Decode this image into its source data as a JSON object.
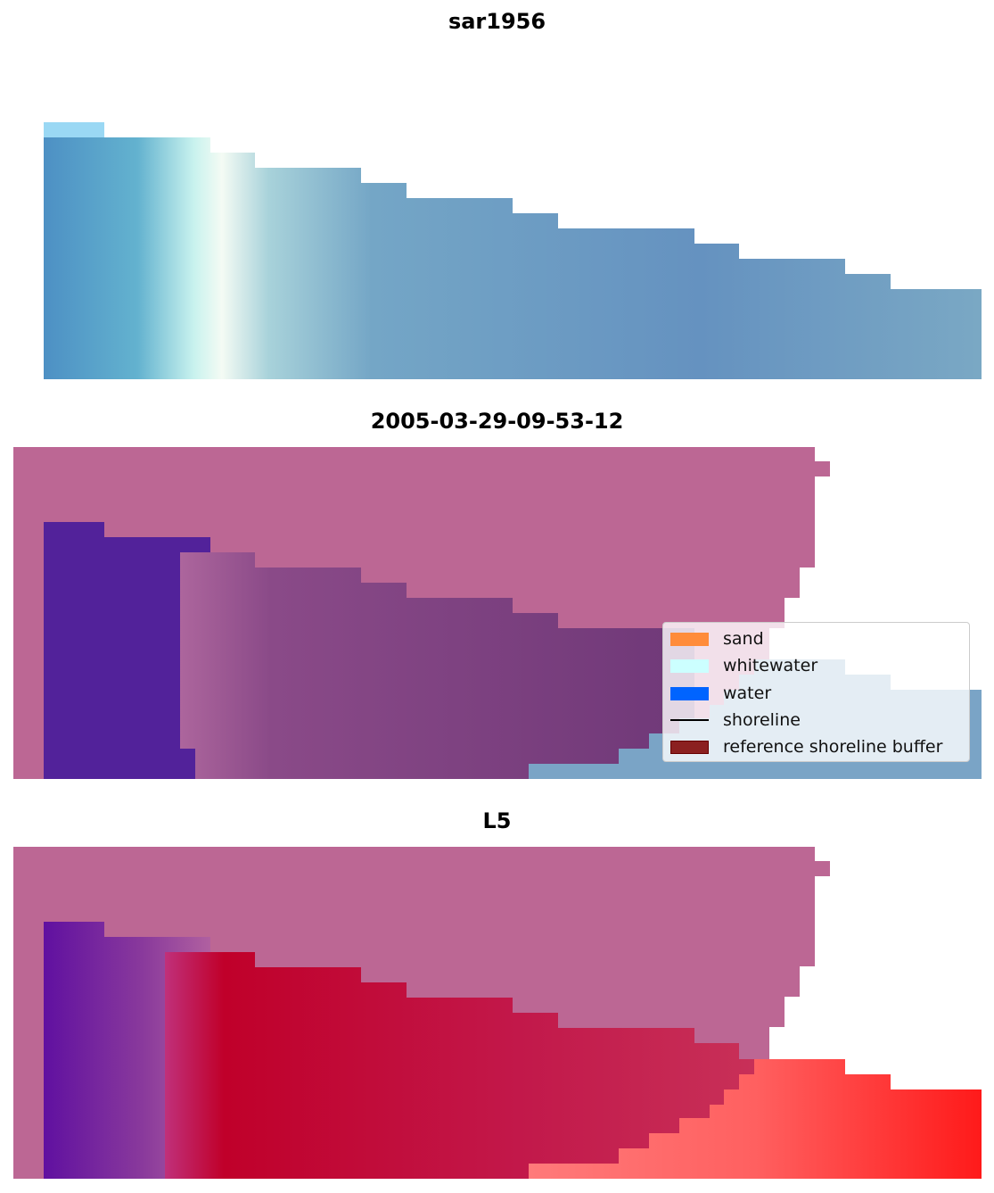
{
  "panels": [
    {
      "title": "sar1956"
    },
    {
      "title": "2005-03-29-09-53-12"
    },
    {
      "title": "L5"
    }
  ],
  "legend": {
    "items": [
      {
        "label": "sand",
        "color": "#ff8c3a",
        "kind": "patch"
      },
      {
        "label": "whitewater",
        "color": "#ccffff",
        "kind": "patch"
      },
      {
        "label": "water",
        "color": "#0064ff",
        "kind": "patch"
      },
      {
        "label": "shoreline",
        "color": "#000000",
        "kind": "line"
      },
      {
        "label": "reference shoreline buffer",
        "color": "#8b2020",
        "kind": "patch"
      }
    ]
  }
}
